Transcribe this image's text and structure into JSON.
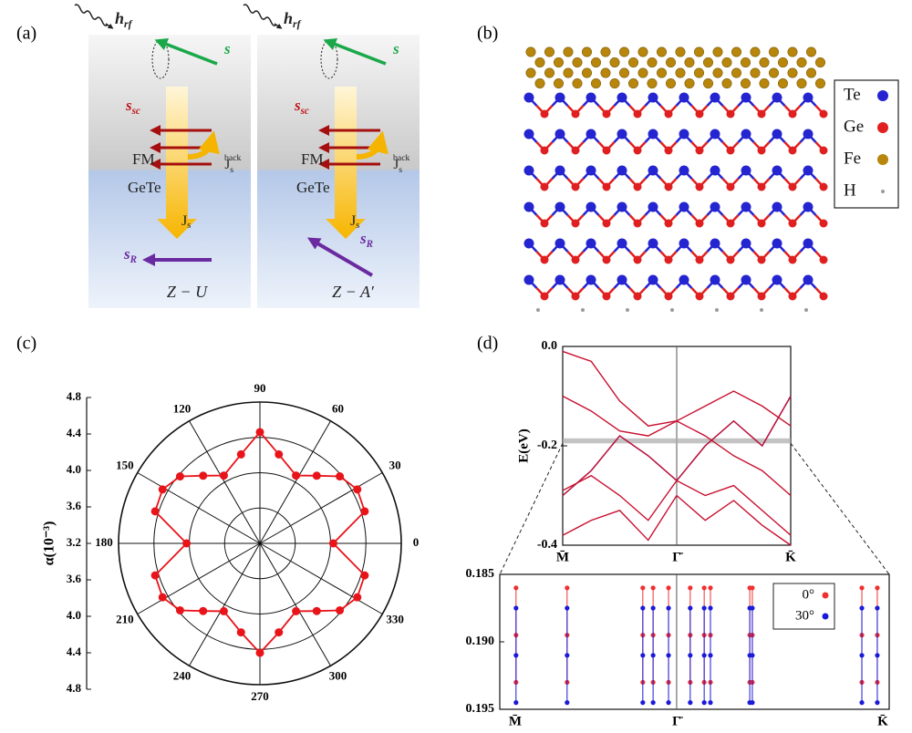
{
  "panel_labels": [
    "(a)",
    "(b)",
    "(c)",
    "(d)"
  ],
  "panel_a": {
    "subpanels": [
      {
        "h_rf": {
          "main": "h",
          "sub": "rf"
        },
        "s": "s",
        "s_sc": {
          "main": "s",
          "sub": "sc"
        },
        "fm": "FM",
        "gete": "GeTe",
        "j_back": {
          "main": "J",
          "sub": "s",
          "sup": "back"
        },
        "j_s": {
          "main": "J",
          "sub": "s"
        },
        "s_r": {
          "main": "s",
          "sub": "R"
        },
        "config": "Z − U"
      },
      {
        "h_rf": {
          "main": "h",
          "sub": "rf"
        },
        "s": "s",
        "s_sc": {
          "main": "s",
          "sub": "sc"
        },
        "fm": "FM",
        "gete": "GeTe",
        "j_back": {
          "main": "J",
          "sub": "s",
          "sup": "back"
        },
        "j_s": {
          "main": "J",
          "sub": "s"
        },
        "s_r": {
          "main": "s",
          "sub": "R"
        },
        "config": "Z − A′"
      }
    ]
  },
  "panel_b": {
    "legend": [
      {
        "name": "Te",
        "color": "#2424d0"
      },
      {
        "name": "Ge",
        "color": "#e02020"
      },
      {
        "name": "Fe",
        "color": "#b8860b"
      },
      {
        "name": "H",
        "color": "#9a9a9a"
      }
    ]
  },
  "chart_data": [
    {
      "type": "polar",
      "axis_label": "α(10⁻³)",
      "color": "#e8141a",
      "angles": [
        0,
        17,
        29,
        40,
        50,
        62,
        78,
        90,
        102,
        118,
        130,
        140,
        151,
        163,
        180,
        197,
        209,
        220,
        230,
        242,
        258,
        270,
        282,
        298,
        310,
        320,
        331,
        343
      ],
      "values": [
        4.03,
        4.44,
        4.46,
        4.38,
        4.2,
        4.07,
        4.23,
        4.46,
        4.23,
        4.07,
        4.2,
        4.38,
        4.46,
        4.44,
        4.03,
        4.44,
        4.46,
        4.38,
        4.2,
        4.07,
        4.23,
        4.44,
        4.23,
        4.07,
        4.2,
        4.38,
        4.46,
        4.44
      ],
      "rlim": [
        3.2,
        4.8
      ],
      "rticks": [
        3.2,
        3.6,
        {
          "value": 4,
          "label": "4.0"
        },
        4.4,
        4.8
      ],
      "angle_ticks": [
        0,
        30,
        60,
        90,
        120,
        150,
        180,
        210,
        240,
        270,
        300,
        330
      ]
    },
    {
      "type": "line",
      "ylabel": "E(eV)",
      "x": [
        0,
        0.125,
        0.25,
        0.375,
        0.5,
        0.625,
        0.75,
        0.875,
        1
      ],
      "series": [
        {
          "color": "#c8102e",
          "values": [
            -0.01,
            -0.03,
            -0.11,
            -0.16,
            -0.15,
            -0.12,
            -0.09,
            -0.12,
            -0.16
          ]
        },
        {
          "color": "#2030d0",
          "values": [
            -0.3,
            -0.25,
            -0.18,
            -0.22,
            -0.27,
            -0.2,
            -0.15,
            -0.2,
            -0.1
          ]
        },
        {
          "color": "#c8102e",
          "values": [
            -0.3,
            -0.25,
            -0.18,
            -0.22,
            -0.27,
            -0.2,
            -0.15,
            -0.2,
            -0.1
          ]
        },
        {
          "color": "#c8102e",
          "values": [
            -0.29,
            -0.26,
            -0.3,
            -0.35,
            -0.27,
            -0.3,
            -0.28,
            -0.33,
            -0.38
          ]
        },
        {
          "color": "#c8102e",
          "values": [
            -0.38,
            -0.35,
            -0.33,
            -0.39,
            -0.3,
            -0.35,
            -0.31,
            -0.36,
            -0.4
          ]
        },
        {
          "color": "#c8102e",
          "values": [
            -0.1,
            -0.13,
            -0.17,
            -0.18,
            -0.15,
            -0.18,
            -0.22,
            -0.25,
            -0.3
          ]
        }
      ],
      "xlim": [
        0,
        1
      ],
      "ylim": [
        -0.4,
        0
      ],
      "yticks": [
        -0.4,
        -0.2,
        {
          "value": 0,
          "label": "0.0"
        }
      ],
      "xticks": [
        {
          "value": 0,
          "label": "M̄"
        },
        {
          "value": 0.5,
          "label": "Γ̄"
        },
        {
          "value": 1,
          "label": "K̄"
        }
      ],
      "highlight": [
        -0.195,
        -0.185
      ]
    },
    {
      "type": "scatter",
      "legend": "upper right",
      "series": [
        {
          "name": "0°",
          "color": "#f03030",
          "x": [
            0.002,
            0.002,
            0.002,
            0.141,
            0.141,
            0.141,
            0.347,
            0.347,
            0.347,
            0.375,
            0.375,
            0.375,
            0.417,
            0.417,
            0.417,
            0.476,
            0.476,
            0.476,
            0.514,
            0.514,
            0.514,
            0.531,
            0.531,
            0.531,
            0.638,
            0.638,
            0.638,
            0.645,
            0.645,
            0.645,
            0.943,
            0.943,
            0.943,
            0.985,
            0.985,
            0.985
          ],
          "values": [
            0.186,
            0.1895,
            0.193,
            0.186,
            0.1895,
            0.193,
            0.186,
            0.1895,
            0.193,
            0.186,
            0.1895,
            0.193,
            0.186,
            0.1895,
            0.193,
            0.186,
            0.1895,
            0.193,
            0.186,
            0.1895,
            0.193,
            0.186,
            0.1895,
            0.193,
            0.186,
            0.1895,
            0.193,
            0.186,
            0.1895,
            0.193,
            0.186,
            0.1895,
            0.193,
            0.186,
            0.1895,
            0.193
          ]
        },
        {
          "name": "30°",
          "color": "#1a1ad8",
          "x": [
            0.002,
            0.002,
            0.002,
            0.141,
            0.141,
            0.141,
            0.347,
            0.347,
            0.347,
            0.375,
            0.375,
            0.375,
            0.417,
            0.417,
            0.417,
            0.476,
            0.476,
            0.476,
            0.514,
            0.514,
            0.514,
            0.531,
            0.531,
            0.531,
            0.638,
            0.638,
            0.638,
            0.645,
            0.645,
            0.645,
            0.943,
            0.943,
            0.943,
            0.985,
            0.985,
            0.985
          ],
          "values": [
            0.1875,
            0.191,
            0.1945,
            0.1875,
            0.191,
            0.1945,
            0.1875,
            0.191,
            0.1945,
            0.1875,
            0.191,
            0.1945,
            0.1875,
            0.191,
            0.1945,
            0.1875,
            0.191,
            0.1945,
            0.1875,
            0.191,
            0.1945,
            0.1875,
            0.191,
            0.1945,
            0.1875,
            0.191,
            0.1945,
            0.1875,
            0.191,
            0.1945,
            0.1875,
            0.191,
            0.1945,
            0.1875,
            0.191,
            0.1945
          ]
        }
      ],
      "xlim": [
        0,
        1
      ],
      "ylim": [
        0.195,
        0.185
      ],
      "yticks": [
        0.185,
        {
          "value": 0.19,
          "label": "0.190"
        },
        0.195
      ],
      "xticks": [
        {
          "value": 0,
          "label": "M̄"
        },
        {
          "value": 0.439,
          "label": "Γ̄"
        },
        {
          "value": 1,
          "label": "K̄"
        }
      ]
    }
  ]
}
